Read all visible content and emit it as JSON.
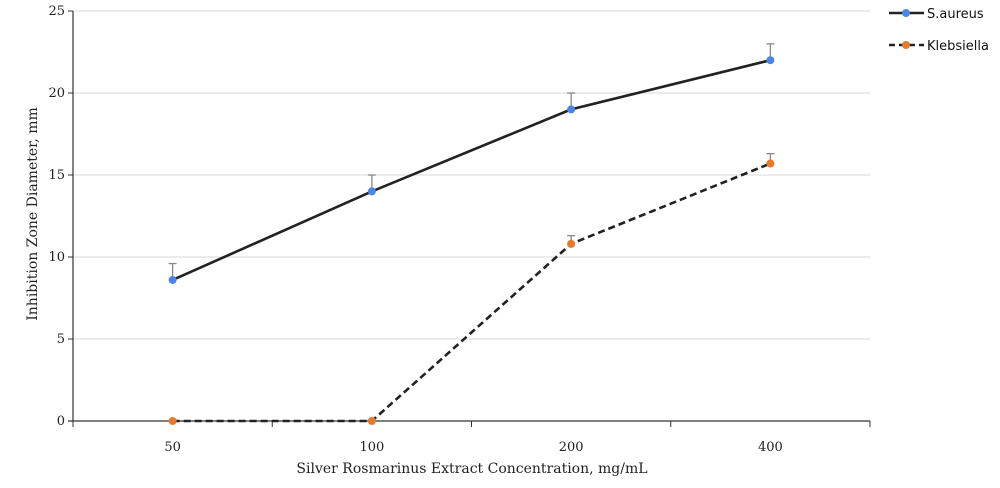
{
  "chart_data": {
    "type": "line",
    "title": "",
    "xlabel": "Silver Rosmarinus Extract Concentration, mg/mL",
    "ylabel": "Inhibition Zone Diameter, mm",
    "categories": [
      "50",
      "100",
      "200",
      "400"
    ],
    "ylim": [
      0,
      25
    ],
    "yticks": [
      0,
      5,
      10,
      15,
      20,
      25
    ],
    "grid": "horizontal",
    "legend_position": "top-right",
    "series": [
      {
        "name": "S.aureus",
        "values": [
          8.6,
          14.0,
          19.0,
          22.0
        ],
        "error_upper": [
          1.0,
          1.0,
          1.0,
          1.0
        ],
        "line_style": "solid",
        "marker_color": "#4a86e8",
        "line_color": "#222222"
      },
      {
        "name": "Klebsiella",
        "values": [
          0,
          0,
          10.8,
          15.7
        ],
        "error_upper": [
          0,
          0,
          0.5,
          0.6
        ],
        "line_style": "dashed",
        "marker_color": "#e8782a",
        "line_color": "#222222"
      }
    ]
  }
}
